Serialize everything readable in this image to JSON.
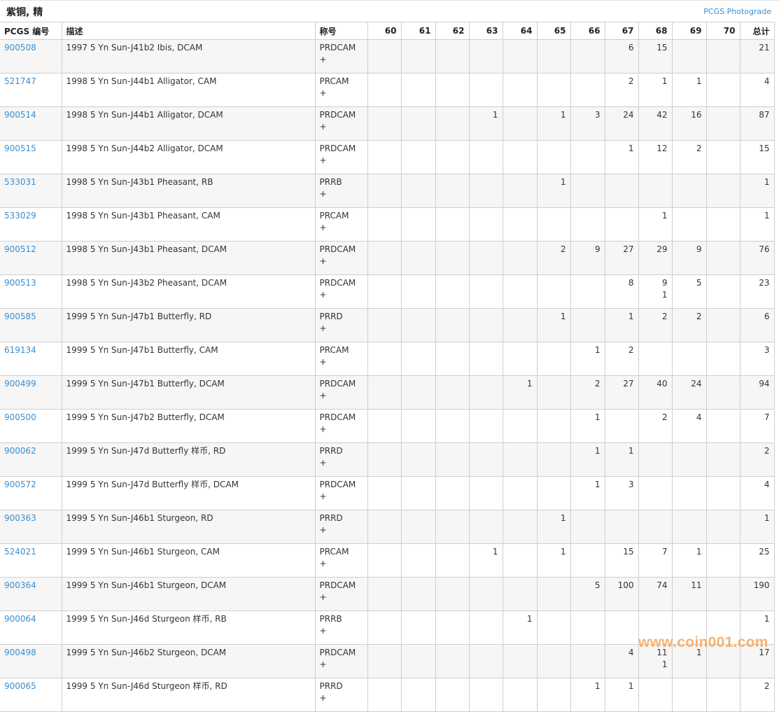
{
  "header": {
    "title": "紫铜, 精",
    "photograde_link": "PCGS Photograde"
  },
  "columns": [
    "PCGS 编号",
    "描述",
    "称号",
    "60",
    "61",
    "62",
    "63",
    "64",
    "65",
    "66",
    "67",
    "68",
    "69",
    "70",
    "总计"
  ],
  "rows": [
    {
      "id": "900508",
      "desc": "1997 5 Yn Sun-J41b2 Ibis, DCAM",
      "des": "PRDCAM\n+",
      "pop": [
        "",
        "",
        "",
        "",
        "",
        "",
        "",
        "6",
        "15",
        "",
        "",
        "21"
      ]
    },
    {
      "id": "521747",
      "desc": "1998 5 Yn Sun-J44b1 Alligator, CAM",
      "des": "PRCAM\n+",
      "pop": [
        "",
        "",
        "",
        "",
        "",
        "",
        "",
        "2",
        "1",
        "1",
        "",
        "4"
      ]
    },
    {
      "id": "900514",
      "desc": "1998 5 Yn Sun-J44b1 Alligator, DCAM",
      "des": "PRDCAM\n+",
      "pop": [
        "",
        "",
        "",
        "1",
        "",
        "1",
        "3",
        "24",
        "42",
        "16",
        "",
        "87"
      ]
    },
    {
      "id": "900515",
      "desc": "1998 5 Yn Sun-J44b2 Alligator, DCAM",
      "des": "PRDCAM\n+",
      "pop": [
        "",
        "",
        "",
        "",
        "",
        "",
        "",
        "1",
        "12",
        "2",
        "",
        "15"
      ]
    },
    {
      "id": "533031",
      "desc": "1998 5 Yn Sun-J43b1 Pheasant, RB",
      "des": "PRRB\n+",
      "pop": [
        "",
        "",
        "",
        "",
        "",
        "1",
        "",
        "",
        "",
        "",
        "",
        "1"
      ]
    },
    {
      "id": "533029",
      "desc": "1998 5 Yn Sun-J43b1 Pheasant, CAM",
      "des": "PRCAM\n+",
      "pop": [
        "",
        "",
        "",
        "",
        "",
        "",
        "",
        "",
        "1",
        "",
        "",
        "1"
      ]
    },
    {
      "id": "900512",
      "desc": "1998 5 Yn Sun-J43b1 Pheasant, DCAM",
      "des": "PRDCAM\n+",
      "pop": [
        "",
        "",
        "",
        "",
        "",
        "2",
        "9",
        "27",
        "29",
        "9",
        "",
        "76"
      ]
    },
    {
      "id": "900513",
      "desc": "1998 5 Yn Sun-J43b2 Pheasant, DCAM",
      "des": "PRDCAM\n+",
      "pop": [
        "",
        "",
        "",
        "",
        "",
        "",
        "",
        "8",
        "9\n1",
        "5",
        "",
        "23"
      ]
    },
    {
      "id": "900585",
      "desc": "1999 5 Yn Sun-J47b1 Butterfly, RD",
      "des": "PRRD\n+",
      "pop": [
        "",
        "",
        "",
        "",
        "",
        "1",
        "",
        "1",
        "2",
        "2",
        "",
        "6"
      ]
    },
    {
      "id": "619134",
      "desc": "1999 5 Yn Sun-J47b1 Butterfly, CAM",
      "des": "PRCAM\n+",
      "pop": [
        "",
        "",
        "",
        "",
        "",
        "",
        "1",
        "2",
        "",
        "",
        "",
        "3"
      ]
    },
    {
      "id": "900499",
      "desc": "1999 5 Yn Sun-J47b1 Butterfly, DCAM",
      "des": "PRDCAM\n+",
      "pop": [
        "",
        "",
        "",
        "",
        "1",
        "",
        "2",
        "27",
        "40",
        "24",
        "",
        "94"
      ]
    },
    {
      "id": "900500",
      "desc": "1999 5 Yn Sun-J47b2 Butterfly, DCAM",
      "des": "PRDCAM\n+",
      "pop": [
        "",
        "",
        "",
        "",
        "",
        "",
        "1",
        "",
        "2",
        "4",
        "",
        "7"
      ]
    },
    {
      "id": "900062",
      "desc": "1999 5 Yn Sun-J47d Butterfly 样币, RD",
      "des": "PRRD\n+",
      "pop": [
        "",
        "",
        "",
        "",
        "",
        "",
        "1",
        "1",
        "",
        "",
        "",
        "2"
      ]
    },
    {
      "id": "900572",
      "desc": "1999 5 Yn Sun-J47d Butterfly 样币, DCAM",
      "des": "PRDCAM\n+",
      "pop": [
        "",
        "",
        "",
        "",
        "",
        "",
        "1",
        "3",
        "",
        "",
        "",
        "4"
      ]
    },
    {
      "id": "900363",
      "desc": "1999 5 Yn Sun-J46b1 Sturgeon, RD",
      "des": "PRRD\n+",
      "pop": [
        "",
        "",
        "",
        "",
        "",
        "1",
        "",
        "",
        "",
        "",
        "",
        "1"
      ]
    },
    {
      "id": "524021",
      "desc": "1999 5 Yn Sun-J46b1 Sturgeon, CAM",
      "des": "PRCAM\n+",
      "pop": [
        "",
        "",
        "",
        "1",
        "",
        "1",
        "",
        "15",
        "7",
        "1",
        "",
        "25"
      ]
    },
    {
      "id": "900364",
      "desc": "1999 5 Yn Sun-J46b1 Sturgeon, DCAM",
      "des": "PRDCAM\n+",
      "pop": [
        "",
        "",
        "",
        "",
        "",
        "",
        "5",
        "100",
        "74",
        "11",
        "",
        "190"
      ]
    },
    {
      "id": "900064",
      "desc": "1999 5 Yn Sun-J46d Sturgeon 样币, RB",
      "des": "PRRB\n+",
      "pop": [
        "",
        "",
        "",
        "",
        "1",
        "",
        "",
        "",
        "",
        "",
        "",
        "1"
      ]
    },
    {
      "id": "900498",
      "desc": "1999 5 Yn Sun-J46b2 Sturgeon, DCAM",
      "des": "PRDCAM\n+",
      "pop": [
        "",
        "",
        "",
        "",
        "",
        "",
        "",
        "4",
        "11\n1",
        "1",
        "",
        "17"
      ]
    },
    {
      "id": "900065",
      "desc": "1999 5 Yn Sun-J46d Sturgeon 样币, RD",
      "des": "PRRD\n+",
      "pop": [
        "",
        "",
        "",
        "",
        "",
        "",
        "1",
        "1",
        "",
        "",
        "",
        "2"
      ]
    }
  ],
  "watermark": "www.coin001.com",
  "colors": {
    "link": "#3a8fd0",
    "stripe": "#f6f6f6",
    "border": "#cfcfcf",
    "watermark": "#f5a050"
  }
}
